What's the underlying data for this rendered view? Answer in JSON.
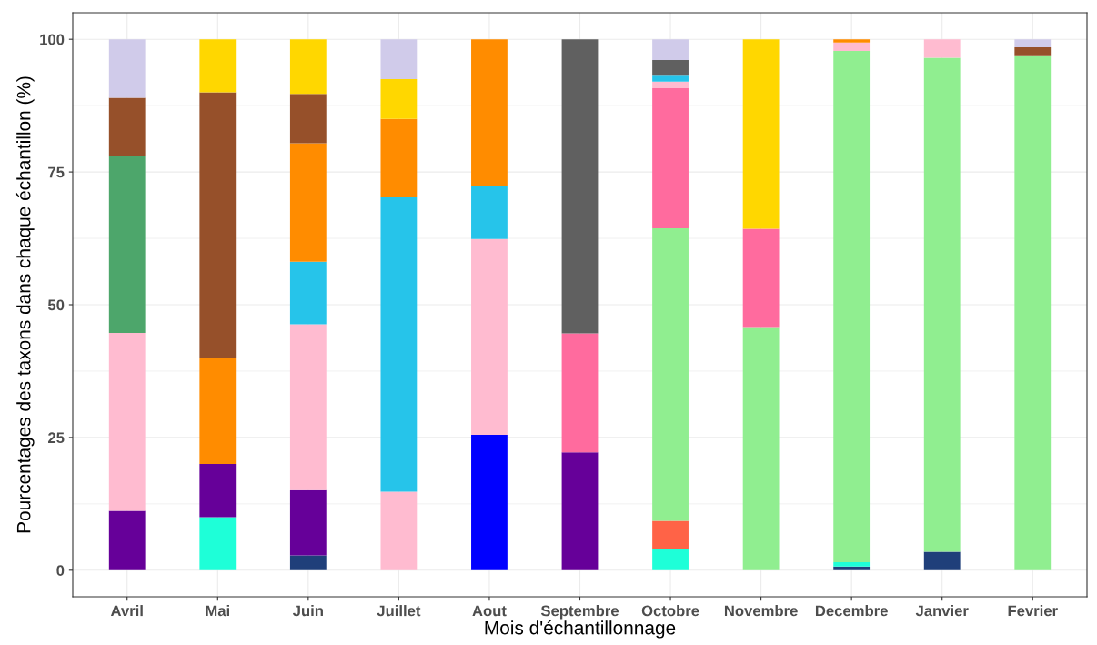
{
  "chart_data": {
    "type": "bar",
    "stacked": true,
    "xlabel": "Mois d'échantillonnage",
    "ylabel": "Pourcentages des taxons dans chaque échantillon (%)",
    "categories": [
      "Avril",
      "Mai",
      "Juin",
      "Juillet",
      "Aout",
      "Septembre",
      "Octobre",
      "Novembre",
      "Decembre",
      "Janvier",
      "Fevrier"
    ],
    "ylim": [
      -5,
      105
    ],
    "yticks": [
      0,
      25,
      50,
      75,
      100
    ],
    "grid": true,
    "legend": false,
    "series": [
      {
        "color": "#1f3f7a",
        "values": [
          null,
          null,
          2.8,
          null,
          null,
          null,
          null,
          null,
          0.7,
          3.5,
          null
        ]
      },
      {
        "color": "#1effd8",
        "values": [
          null,
          10,
          null,
          null,
          null,
          null,
          3.9,
          null,
          0.8,
          null,
          null
        ]
      },
      {
        "color": "#ff6347",
        "values": [
          null,
          null,
          null,
          null,
          null,
          null,
          5.4,
          null,
          null,
          null,
          null
        ]
      },
      {
        "color": "#0000ff",
        "values": [
          null,
          null,
          null,
          null,
          25.5,
          null,
          null,
          null,
          null,
          null,
          null
        ]
      },
      {
        "color": "#660099",
        "values": [
          11.2,
          10,
          12.3,
          null,
          null,
          22.2,
          null,
          null,
          null,
          null,
          null
        ]
      },
      {
        "color": "#90ee90",
        "values": [
          null,
          null,
          null,
          null,
          null,
          null,
          55.1,
          45.8,
          96.3,
          93.0,
          96.8
        ]
      },
      {
        "color": "#ff6b9e",
        "values": [
          null,
          null,
          null,
          null,
          null,
          22.4,
          26.4,
          18.5,
          null,
          null,
          null
        ]
      },
      {
        "color": "#ffbbd0",
        "values": [
          33.5,
          null,
          31.2,
          14.8,
          36.9,
          null,
          1.2,
          null,
          1.6,
          3.5,
          null
        ]
      },
      {
        "color": "#26c4ea",
        "values": [
          null,
          null,
          11.8,
          55.4,
          10.0,
          null,
          1.3,
          null,
          null,
          null,
          null
        ]
      },
      {
        "color": "#4da66b",
        "values": [
          33.3,
          null,
          null,
          null,
          null,
          null,
          null,
          null,
          null,
          null,
          null
        ]
      },
      {
        "color": "#ff8c00",
        "values": [
          null,
          20,
          22.3,
          14.8,
          27.6,
          null,
          null,
          null,
          0.6,
          null,
          null
        ]
      },
      {
        "color": "#96502a",
        "values": [
          11.0,
          50,
          9.3,
          null,
          null,
          null,
          null,
          null,
          null,
          null,
          1.7
        ]
      },
      {
        "color": "#ffd700",
        "values": [
          null,
          10,
          10.3,
          7.5,
          null,
          null,
          null,
          35.7,
          null,
          null,
          null
        ]
      },
      {
        "color": "#606060",
        "values": [
          null,
          null,
          null,
          null,
          null,
          55.4,
          2.8,
          null,
          null,
          null,
          null
        ]
      },
      {
        "color": "#d0cbea",
        "values": [
          11.0,
          null,
          null,
          7.5,
          null,
          null,
          3.9,
          null,
          null,
          null,
          1.5
        ]
      }
    ]
  }
}
